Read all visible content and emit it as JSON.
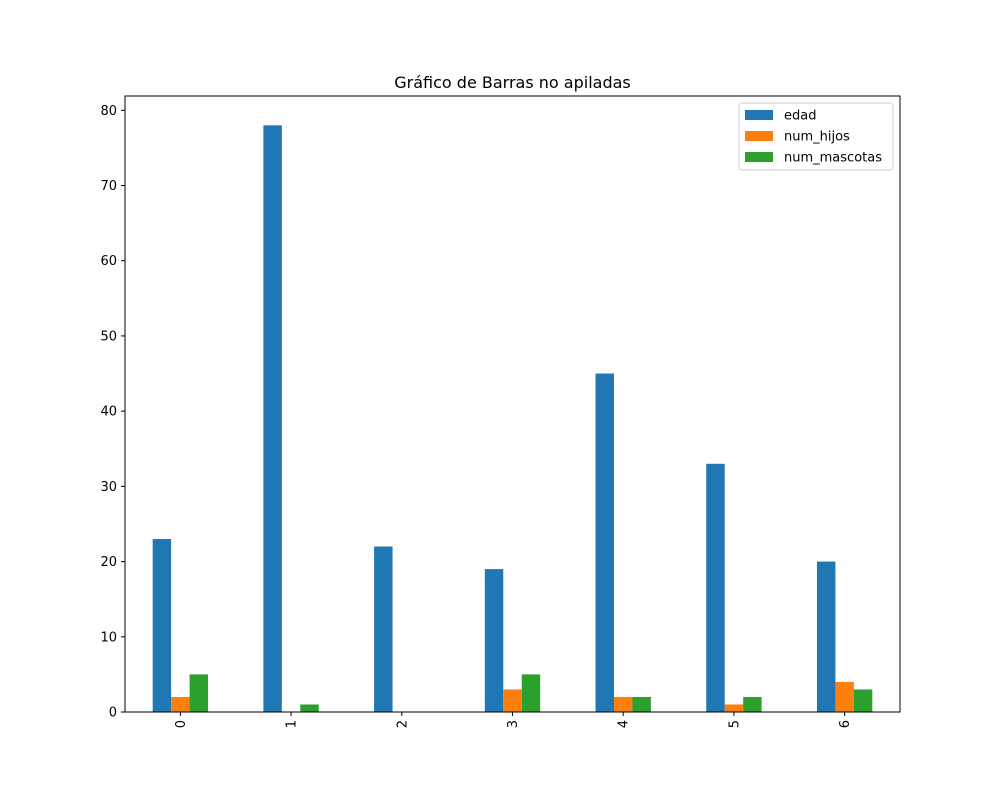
{
  "chart_data": {
    "type": "bar",
    "title": "Gráfico de Barras no apiladas",
    "xlabel": "",
    "ylabel": "",
    "categories": [
      "0",
      "1",
      "2",
      "3",
      "4",
      "5",
      "6"
    ],
    "series": [
      {
        "name": "edad",
        "color": "#1f77b4",
        "values": [
          23,
          78,
          22,
          19,
          45,
          33,
          20
        ]
      },
      {
        "name": "num_hijos",
        "color": "#ff7f0e",
        "values": [
          2,
          0,
          0,
          3,
          2,
          1,
          4
        ]
      },
      {
        "name": "num_mascotas",
        "color": "#2ca02c",
        "values": [
          5,
          1,
          0,
          5,
          2,
          2,
          3
        ]
      }
    ],
    "ylim": [
      0,
      81.9
    ],
    "yticks": [
      0,
      10,
      20,
      30,
      40,
      50,
      60,
      70,
      80
    ],
    "xtick_rotation": 90,
    "grid": false,
    "legend_position": "top-right"
  }
}
